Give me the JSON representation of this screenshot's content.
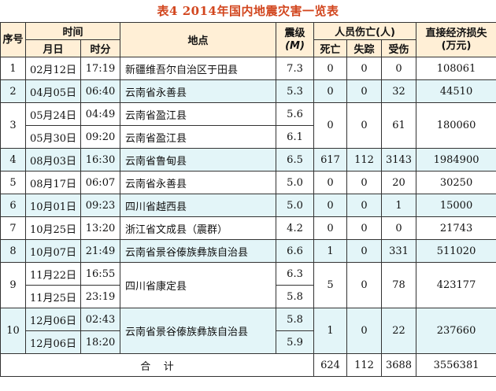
{
  "caption": "表4  2014年国内地震灾害一览表",
  "headers": {
    "seq": "序号",
    "time": "时间",
    "date": "月日",
    "clock": "时分",
    "place": "地点",
    "magnitude": "震级",
    "magnitude_unit": "(M)",
    "casualties": "人员伤亡(人)",
    "deaths": "死亡",
    "missing": "失踪",
    "injured": "受伤",
    "loss": "直接经济损失",
    "loss_unit": "(万元)"
  },
  "rows": [
    {
      "seq": "1",
      "date": "02月12日",
      "time": "17:19",
      "place": "新疆维吾尔自治区于田县",
      "mag": "7.3",
      "deaths": "0",
      "missing": "0",
      "injured": "0",
      "loss": "108061"
    },
    {
      "seq": "2",
      "date": "04月05日",
      "time": "06:40",
      "place": "云南省永善县",
      "mag": "5.3",
      "deaths": "0",
      "missing": "0",
      "injured": "32",
      "loss": "44510"
    },
    {
      "seq": "3",
      "date": "05月24日",
      "time": "04:49",
      "place": "云南省盈江县",
      "mag": "5.6",
      "deaths": "0",
      "missing": "0",
      "injured": "61",
      "loss": "180060",
      "date2": "05月30日",
      "time2": "09:20",
      "place2": "云南省盈江县",
      "mag2": "6.1"
    },
    {
      "seq": "4",
      "date": "08月03日",
      "time": "16:30",
      "place": "云南省鲁甸县",
      "mag": "6.5",
      "deaths": "617",
      "missing": "112",
      "injured": "3143",
      "loss": "1984900"
    },
    {
      "seq": "5",
      "date": "08月17日",
      "time": "06:07",
      "place": "云南省永善县",
      "mag": "5.0",
      "deaths": "0",
      "missing": "0",
      "injured": "20",
      "loss": "30250"
    },
    {
      "seq": "6",
      "date": "10月01日",
      "time": "09:23",
      "place": "四川省越西县",
      "mag": "5.0",
      "deaths": "0",
      "missing": "0",
      "injured": "1",
      "loss": "15000"
    },
    {
      "seq": "7",
      "date": "10月25日",
      "time": "13:20",
      "place": "浙江省文成县（震群）",
      "mag": "4.2",
      "deaths": "0",
      "missing": "0",
      "injured": "0",
      "loss": "21743"
    },
    {
      "seq": "8",
      "date": "10月07日",
      "time": "21:49",
      "place": "云南省景谷傣族彝族自治县",
      "mag": "6.6",
      "deaths": "1",
      "missing": "0",
      "injured": "331",
      "loss": "511020"
    },
    {
      "seq": "9",
      "date": "11月22日",
      "time": "16:55",
      "place": "四川省康定县",
      "mag": "6.3",
      "deaths": "5",
      "missing": "0",
      "injured": "78",
      "loss": "423177",
      "date2": "11月25日",
      "time2": "23:19",
      "mag2": "5.8"
    },
    {
      "seq": "10",
      "date": "12月06日",
      "time": "02:43",
      "place": "云南省景谷傣族彝族自治县",
      "mag": "5.8",
      "deaths": "1",
      "missing": "0",
      "injured": "22",
      "loss": "237660",
      "date2": "12月06日",
      "time2": "18:20",
      "mag2": "5.9"
    }
  ],
  "total": {
    "label": "合    计",
    "deaths": "624",
    "missing": "112",
    "injured": "3688",
    "loss": "3556381"
  }
}
